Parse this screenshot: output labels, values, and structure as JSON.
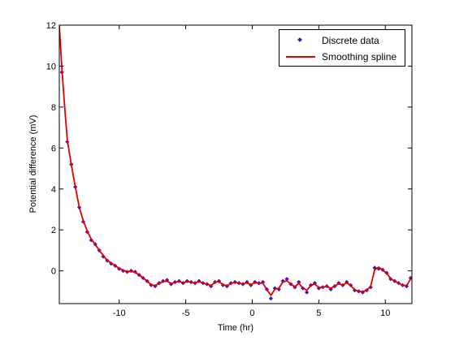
{
  "chart_data": {
    "type": "line",
    "title": "",
    "xlabel": "Time (hr)",
    "ylabel": "Potential difference (mV)",
    "xlim": [
      -14.5,
      12
    ],
    "ylim": [
      -1.6,
      12
    ],
    "x_ticks": [
      -10,
      -5,
      0,
      5,
      10
    ],
    "y_ticks": [
      0,
      2,
      4,
      6,
      8,
      10,
      12
    ],
    "x_tick_labels": [
      "-10",
      "-5",
      "0",
      "5",
      "10"
    ],
    "y_tick_labels": [
      "0",
      "2",
      "4",
      "6",
      "8",
      "10",
      "12"
    ],
    "grid": false,
    "legend_position": "top-right",
    "colors": {
      "discrete": "#4b0fa8",
      "spline": "#e00000"
    },
    "series": [
      {
        "name": "Discrete data",
        "style": "markers",
        "x": [
          -14.3,
          -13.9,
          -13.6,
          -13.3,
          -13.0,
          -12.7,
          -12.4,
          -12.1,
          -11.8,
          -11.5,
          -11.2,
          -10.9,
          -10.6,
          -10.3,
          -10.0,
          -9.7,
          -9.4,
          -9.1,
          -8.8,
          -8.5,
          -8.2,
          -7.9,
          -7.6,
          -7.3,
          -7.0,
          -6.7,
          -6.4,
          -6.1,
          -5.8,
          -5.5,
          -5.2,
          -4.9,
          -4.6,
          -4.3,
          -4.0,
          -3.7,
          -3.4,
          -3.1,
          -2.8,
          -2.5,
          -2.2,
          -1.9,
          -1.6,
          -1.3,
          -1.0,
          -0.7,
          -0.4,
          -0.1,
          0.2,
          0.5,
          0.8,
          1.1,
          1.4,
          1.7,
          2.0,
          2.3,
          2.6,
          2.9,
          3.2,
          3.5,
          3.8,
          4.1,
          4.4,
          4.7,
          5.0,
          5.3,
          5.6,
          5.9,
          6.2,
          6.5,
          6.8,
          7.1,
          7.4,
          7.7,
          8.0,
          8.3,
          8.6,
          8.9,
          9.2,
          9.5,
          9.8,
          10.1,
          10.4,
          10.7,
          11.0,
          11.3,
          11.6,
          11.9
        ],
        "y": [
          9.7,
          6.3,
          5.2,
          4.1,
          3.1,
          2.4,
          1.9,
          1.5,
          1.3,
          1.0,
          0.7,
          0.5,
          0.35,
          0.25,
          0.1,
          0.0,
          -0.05,
          0.0,
          -0.05,
          -0.2,
          -0.35,
          -0.5,
          -0.7,
          -0.75,
          -0.6,
          -0.5,
          -0.45,
          -0.65,
          -0.55,
          -0.5,
          -0.6,
          -0.5,
          -0.55,
          -0.6,
          -0.5,
          -0.6,
          -0.65,
          -0.75,
          -0.55,
          -0.5,
          -0.7,
          -0.75,
          -0.6,
          -0.55,
          -0.6,
          -0.65,
          -0.55,
          -0.7,
          -0.55,
          -0.6,
          -0.55,
          -0.9,
          -1.35,
          -0.85,
          -0.9,
          -0.5,
          -0.4,
          -0.65,
          -0.8,
          -0.55,
          -0.85,
          -1.05,
          -0.7,
          -0.6,
          -0.85,
          -0.8,
          -0.75,
          -0.9,
          -0.75,
          -0.6,
          -0.7,
          -0.55,
          -0.7,
          -0.95,
          -1.0,
          -1.05,
          -0.95,
          -0.8,
          0.15,
          0.1,
          0.05,
          -0.1,
          -0.4,
          -0.5,
          -0.6,
          -0.7,
          -0.75,
          -0.35
        ]
      },
      {
        "name": "Smoothing spline",
        "style": "line",
        "x": [
          -14.5,
          -14.3,
          -14.1,
          -13.9,
          -13.6,
          -13.3,
          -13.0,
          -12.7,
          -12.4,
          -12.1,
          -11.8,
          -11.5,
          -11.2,
          -10.9,
          -10.6,
          -10.3,
          -10.0,
          -9.7,
          -9.4,
          -9.1,
          -8.8,
          -8.5,
          -8.2,
          -7.9,
          -7.6,
          -7.3,
          -7.0,
          -6.7,
          -6.4,
          -6.1,
          -5.8,
          -5.5,
          -5.2,
          -4.9,
          -4.6,
          -4.3,
          -4.0,
          -3.7,
          -3.4,
          -3.1,
          -2.8,
          -2.5,
          -2.2,
          -1.9,
          -1.6,
          -1.3,
          -1.0,
          -0.7,
          -0.4,
          -0.1,
          0.2,
          0.5,
          0.8,
          1.1,
          1.4,
          1.7,
          2.0,
          2.3,
          2.6,
          2.9,
          3.2,
          3.5,
          3.8,
          4.1,
          4.4,
          4.7,
          5.0,
          5.3,
          5.6,
          5.9,
          6.2,
          6.5,
          6.8,
          7.1,
          7.4,
          7.7,
          8.0,
          8.3,
          8.6,
          8.9,
          9.2,
          9.5,
          9.8,
          10.1,
          10.4,
          10.7,
          11.0,
          11.3,
          11.6,
          11.9,
          12.0
        ],
        "y": [
          12.0,
          9.8,
          8.0,
          6.4,
          5.2,
          4.1,
          3.1,
          2.45,
          1.95,
          1.55,
          1.3,
          1.0,
          0.75,
          0.5,
          0.38,
          0.25,
          0.12,
          0.02,
          -0.03,
          -0.02,
          -0.07,
          -0.2,
          -0.35,
          -0.5,
          -0.68,
          -0.72,
          -0.62,
          -0.52,
          -0.5,
          -0.62,
          -0.56,
          -0.52,
          -0.58,
          -0.52,
          -0.56,
          -0.6,
          -0.52,
          -0.6,
          -0.65,
          -0.72,
          -0.56,
          -0.52,
          -0.68,
          -0.72,
          -0.62,
          -0.56,
          -0.6,
          -0.64,
          -0.58,
          -0.68,
          -0.57,
          -0.6,
          -0.6,
          -0.92,
          -1.2,
          -0.9,
          -0.85,
          -0.55,
          -0.48,
          -0.65,
          -0.78,
          -0.6,
          -0.84,
          -0.95,
          -0.72,
          -0.64,
          -0.82,
          -0.8,
          -0.76,
          -0.86,
          -0.75,
          -0.62,
          -0.7,
          -0.58,
          -0.72,
          -0.92,
          -1.0,
          -1.02,
          -0.95,
          -0.75,
          0.05,
          0.18,
          0.05,
          -0.12,
          -0.38,
          -0.5,
          -0.6,
          -0.7,
          -0.72,
          -0.4,
          -0.3
        ]
      }
    ]
  }
}
